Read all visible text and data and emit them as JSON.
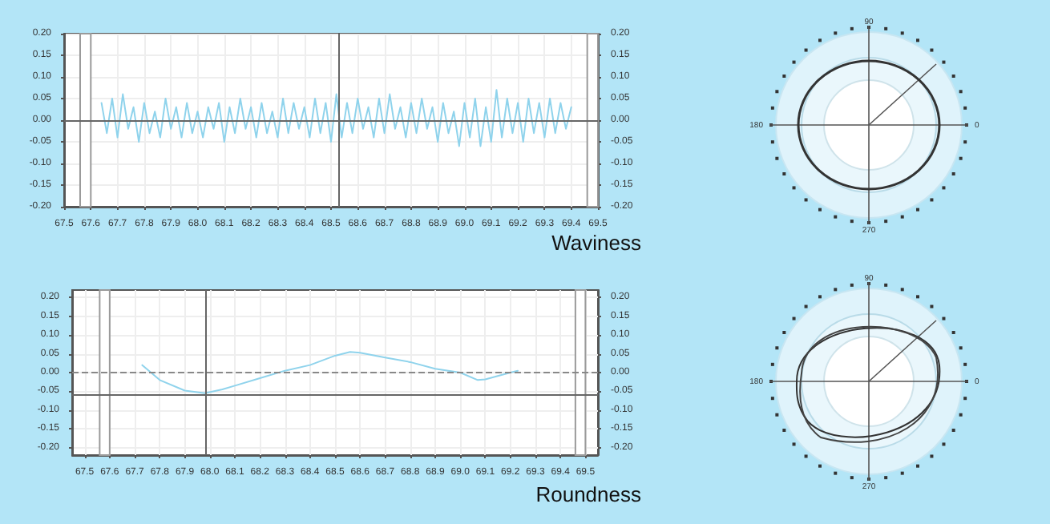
{
  "chart_data": [
    {
      "type": "line",
      "title": "Waviness",
      "x": [
        67.64,
        67.66,
        67.68,
        67.7,
        67.72,
        67.74,
        67.76,
        67.78,
        67.8,
        67.82,
        67.84,
        67.86,
        67.88,
        67.9,
        67.92,
        67.94,
        67.96,
        67.98,
        68.0,
        68.02,
        68.04,
        68.06,
        68.08,
        68.1,
        68.12,
        68.14,
        68.16,
        68.18,
        68.2,
        68.22,
        68.24,
        68.26,
        68.28,
        68.3,
        68.32,
        68.34,
        68.36,
        68.38,
        68.4,
        68.42,
        68.44,
        68.46,
        68.48,
        68.5,
        68.52,
        68.54,
        68.56,
        68.58,
        68.6,
        68.62,
        68.64,
        68.66,
        68.68,
        68.7,
        68.72,
        68.74,
        68.76,
        68.78,
        68.8,
        68.82,
        68.84,
        68.86,
        68.88,
        68.9,
        68.92,
        68.94,
        68.96,
        68.98,
        69.0,
        69.02,
        69.04,
        69.06,
        69.08,
        69.1,
        69.12,
        69.14,
        69.16,
        69.18,
        69.2,
        69.22,
        69.24,
        69.26,
        69.28,
        69.3,
        69.32,
        69.34,
        69.36,
        69.38,
        69.4
      ],
      "series": [
        {
          "color": "#8fd3ec",
          "values": [
            0.04,
            -0.03,
            0.05,
            -0.04,
            0.06,
            -0.02,
            0.03,
            -0.05,
            0.04,
            -0.03,
            0.02,
            -0.04,
            0.05,
            -0.02,
            0.03,
            -0.04,
            0.04,
            -0.03,
            0.02,
            -0.04,
            0.03,
            -0.02,
            0.04,
            -0.05,
            0.03,
            -0.03,
            0.05,
            -0.02,
            0.03,
            -0.04,
            0.04,
            -0.03,
            0.02,
            -0.04,
            0.05,
            -0.03,
            0.04,
            -0.02,
            0.03,
            -0.04,
            0.05,
            -0.03,
            0.04,
            -0.05,
            0.06,
            -0.04,
            0.04,
            -0.03,
            0.05,
            -0.02,
            0.03,
            -0.04,
            0.05,
            -0.03,
            0.06,
            -0.02,
            0.03,
            -0.04,
            0.04,
            -0.03,
            0.05,
            -0.02,
            0.03,
            -0.05,
            0.04,
            -0.03,
            0.02,
            -0.06,
            0.04,
            -0.04,
            0.05,
            -0.06,
            0.03,
            -0.05,
            0.07,
            -0.04,
            0.05,
            -0.03,
            0.04,
            -0.05,
            0.05,
            -0.03,
            0.04,
            -0.04,
            0.05,
            -0.03,
            0.04,
            -0.02,
            0.03
          ]
        }
      ],
      "xlim": [
        67.5,
        69.5
      ],
      "xticks": [
        {
          "value": 67.5,
          "label": "67.5"
        },
        {
          "value": 67.6,
          "label": "67.6"
        },
        {
          "value": 67.7,
          "label": "67.7"
        },
        {
          "value": 67.8,
          "label": "67.8"
        },
        {
          "value": 67.9,
          "label": "67.9"
        },
        {
          "value": 68.0,
          "label": "68.0"
        },
        {
          "value": 68.1,
          "label": "68.1"
        },
        {
          "value": 68.2,
          "label": "68.2"
        },
        {
          "value": 68.3,
          "label": "68.3"
        },
        {
          "value": 68.4,
          "label": "68.4"
        },
        {
          "value": 68.5,
          "label": "68.5"
        },
        {
          "value": 68.6,
          "label": "68.6"
        },
        {
          "value": 68.7,
          "label": "68.7"
        },
        {
          "value": 68.8,
          "label": "68.8"
        },
        {
          "value": 68.9,
          "label": "68.9"
        },
        {
          "value": 69.0,
          "label": "69.0"
        },
        {
          "value": 69.1,
          "label": "69.1"
        },
        {
          "value": 69.2,
          "label": "69.2"
        },
        {
          "value": 69.3,
          "label": "69.3"
        },
        {
          "value": 69.4,
          "label": "69.4"
        },
        {
          "value": 69.5,
          "label": "69.5"
        }
      ],
      "ylim": [
        -0.2,
        0.2
      ],
      "yticks": [
        {
          "value": -0.2,
          "label": "-0.20"
        },
        {
          "value": -0.15,
          "label": "-0.15"
        },
        {
          "value": -0.1,
          "label": "-0.10"
        },
        {
          "value": -0.05,
          "label": "-0.05"
        },
        {
          "value": 0,
          "label": "0.00"
        },
        {
          "value": 0.05,
          "label": "0.05"
        },
        {
          "value": 0.1,
          "label": "0.10"
        },
        {
          "value": 0.15,
          "label": "0.15"
        },
        {
          "value": 0.2,
          "label": "0.20"
        }
      ],
      "y2lim": [
        -0.2,
        0.2
      ],
      "y2ticks": [
        {
          "value": -0.2,
          "label": "-0.20"
        },
        {
          "value": -0.15,
          "label": "-0.15"
        },
        {
          "value": -0.1,
          "label": "-0.10"
        },
        {
          "value": -0.05,
          "label": "-0.05"
        },
        {
          "value": 0,
          "label": "0.00"
        },
        {
          "value": 0.05,
          "label": "0.05"
        },
        {
          "value": 0.1,
          "label": "0.10"
        },
        {
          "value": 0.15,
          "label": "0.15"
        },
        {
          "value": 0.2,
          "label": "0.20"
        }
      ],
      "ref_lines": [
        {
          "axis": "x",
          "value": 68.53,
          "color": "#666666",
          "line_style": "solid"
        },
        {
          "axis": "y",
          "value": 0,
          "color": "#666666",
          "line_style": "solid"
        }
      ],
      "bands": [
        {
          "axis": "x",
          "from": 67.56,
          "to": 67.6,
          "color": "#9a9a9a"
        },
        {
          "axis": "x",
          "from": 69.46,
          "to": 69.5,
          "color": "#9a9a9a"
        }
      ],
      "grid": true,
      "marker": "none",
      "line_style": "solid"
    },
    {
      "type": "other",
      "annotations": [
        "90",
        "0",
        "270",
        "180"
      ]
    },
    {
      "type": "line",
      "title": "Roundness",
      "x": [
        67.73,
        67.8,
        67.9,
        67.98,
        68.05,
        68.1,
        68.2,
        68.3,
        68.4,
        68.5,
        68.56,
        68.6,
        68.7,
        68.8,
        68.9,
        69.0,
        69.07,
        69.1,
        69.2,
        69.23
      ],
      "series": [
        {
          "color": "#8fd3ec",
          "values": [
            0.02,
            -0.02,
            -0.048,
            -0.055,
            -0.045,
            -0.035,
            -0.015,
            0.005,
            0.02,
            0.045,
            0.055,
            0.053,
            0.04,
            0.028,
            0.01,
            0.0,
            -0.02,
            -0.018,
            0.0,
            0.005
          ]
        }
      ],
      "xlim": [
        67.45,
        69.55
      ],
      "xticks": [
        {
          "value": 67.5,
          "label": "67.5"
        },
        {
          "value": 67.6,
          "label": "67.6"
        },
        {
          "value": 67.7,
          "label": "67.7"
        },
        {
          "value": 67.8,
          "label": "67.8"
        },
        {
          "value": 67.9,
          "label": "67.9"
        },
        {
          "value": 68.0,
          "label": "68.0"
        },
        {
          "value": 68.1,
          "label": "68.1"
        },
        {
          "value": 68.2,
          "label": "68.2"
        },
        {
          "value": 68.3,
          "label": "68.3"
        },
        {
          "value": 68.4,
          "label": "68.4"
        },
        {
          "value": 68.5,
          "label": "68.5"
        },
        {
          "value": 68.6,
          "label": "68.6"
        },
        {
          "value": 68.7,
          "label": "68.7"
        },
        {
          "value": 68.8,
          "label": "68.8"
        },
        {
          "value": 68.9,
          "label": "68.9"
        },
        {
          "value": 69.0,
          "label": "69.0"
        },
        {
          "value": 69.1,
          "label": "69.1"
        },
        {
          "value": 69.2,
          "label": "69.2"
        },
        {
          "value": 69.3,
          "label": "69.3"
        },
        {
          "value": 69.4,
          "label": "69.4"
        },
        {
          "value": 69.5,
          "label": "69.5"
        }
      ],
      "ylim": [
        -0.22,
        0.22
      ],
      "yticks": [
        {
          "value": -0.2,
          "label": "-0.20"
        },
        {
          "value": -0.15,
          "label": "-0.15"
        },
        {
          "value": -0.1,
          "label": "-0.10"
        },
        {
          "value": -0.05,
          "label": "-0.05"
        },
        {
          "value": 0,
          "label": "0.00"
        },
        {
          "value": 0.05,
          "label": "0.05"
        },
        {
          "value": 0.1,
          "label": "0.10"
        },
        {
          "value": 0.15,
          "label": "0.15"
        },
        {
          "value": 0.2,
          "label": "0.20"
        }
      ],
      "y2lim": [
        -0.22,
        0.22
      ],
      "y2ticks": [
        {
          "value": -0.2,
          "label": "-0.20"
        },
        {
          "value": -0.15,
          "label": "-0.15"
        },
        {
          "value": -0.1,
          "label": "-0.10"
        },
        {
          "value": -0.05,
          "label": "-0.05"
        },
        {
          "value": 0,
          "label": "0.00"
        },
        {
          "value": 0.05,
          "label": "0.05"
        },
        {
          "value": 0.1,
          "label": "0.10"
        },
        {
          "value": 0.15,
          "label": "0.15"
        },
        {
          "value": 0.2,
          "label": "0.20"
        }
      ],
      "ref_lines": [
        {
          "axis": "x",
          "value": 67.98,
          "color": "#666666",
          "line_style": "solid"
        },
        {
          "axis": "y",
          "value": -0.055,
          "color": "#666666",
          "line_style": "solid"
        },
        {
          "axis": "y",
          "value": 0,
          "color": "#888888",
          "line_style": "dashed"
        }
      ],
      "bands": [
        {
          "axis": "x",
          "from": 67.56,
          "to": 67.6,
          "color": "#9a9a9a"
        },
        {
          "axis": "x",
          "from": 69.46,
          "to": 69.5,
          "color": "#9a9a9a"
        }
      ],
      "grid": true,
      "marker": "none",
      "line_style": "solid"
    },
    {
      "type": "other",
      "annotations": [
        "90",
        "0",
        "270",
        "180"
      ]
    }
  ]
}
